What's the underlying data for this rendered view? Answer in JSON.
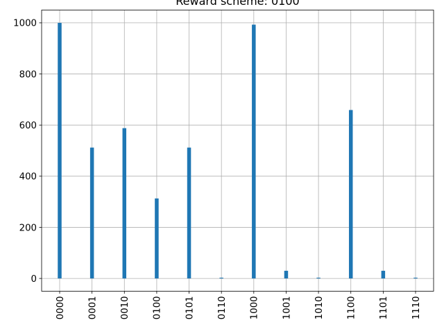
{
  "chart_data": {
    "type": "bar",
    "title": "Reward scheme: 0100",
    "xlabel": "",
    "ylabel": "",
    "categories": [
      "0000",
      "0001",
      "0010",
      "0100",
      "0101",
      "0110",
      "1000",
      "1001",
      "1010",
      "1100",
      "1101",
      "1110"
    ],
    "values": [
      1000,
      512,
      588,
      313,
      512,
      3,
      993,
      30,
      3,
      659,
      30,
      3
    ],
    "ylim": [
      -50,
      1050
    ],
    "yticks": [
      0,
      200,
      400,
      600,
      800,
      1000
    ],
    "grid": true,
    "bar_color": "#1f77b4",
    "x_tick_rotation": "vertical"
  }
}
